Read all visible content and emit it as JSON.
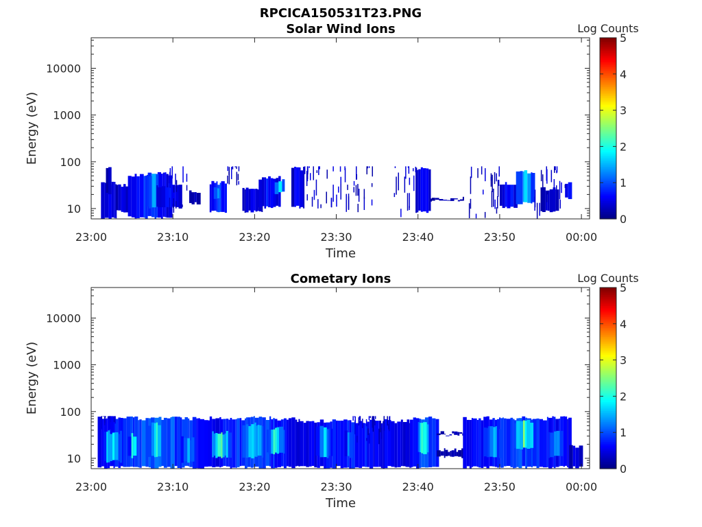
{
  "figure_title": "RPCICA150531T23.PNG",
  "colors": {
    "colormap": [
      "#00007f",
      "#0000ff",
      "#007fff",
      "#00ffff",
      "#7fff7f",
      "#ffff00",
      "#ff7f00",
      "#ff0000",
      "#7f0000"
    ],
    "axis": "#262626"
  },
  "chart_data": [
    {
      "type": "heatmap",
      "title": "Solar Wind Ions",
      "xlabel": "Time",
      "ylabel": "Energy (eV)",
      "x_range": [
        "23:00",
        "00:01"
      ],
      "x_tick_labels": [
        "23:00",
        "23:10",
        "23:20",
        "23:30",
        "23:40",
        "23:50",
        "00:00"
      ],
      "y_scale": "log",
      "y_range": [
        6,
        45000
      ],
      "y_tick_labels": [
        "10",
        "100",
        "1000",
        "10000"
      ],
      "colorbar": {
        "label": "Log Counts",
        "range": [
          0,
          5
        ],
        "tick_labels": [
          "0",
          "1",
          "2",
          "3",
          "4",
          "5"
        ]
      },
      "grid": false,
      "blobs": [
        {
          "t0": 1.2,
          "t1": 3.0,
          "e0": 6,
          "e1": 40,
          "v": 0.6
        },
        {
          "t0": 1.8,
          "t1": 2.2,
          "e0": 20,
          "e1": 80,
          "v": 0.4
        },
        {
          "t0": 3.0,
          "t1": 4.5,
          "e0": 8,
          "e1": 35,
          "v": 0.5
        },
        {
          "t0": 4.5,
          "t1": 9.5,
          "e0": 6,
          "e1": 60,
          "v": 0.8
        },
        {
          "t0": 6.8,
          "t1": 8.0,
          "e0": 10,
          "e1": 60,
          "v": 1.3
        },
        {
          "t0": 8.0,
          "t1": 10.8,
          "e0": 10,
          "e1": 35,
          "v": 0.6
        },
        {
          "t0": 12.0,
          "t1": 13.0,
          "e0": 12,
          "e1": 25,
          "v": 0.3
        },
        {
          "t0": 14.5,
          "t1": 16.5,
          "e0": 8,
          "e1": 40,
          "v": 0.9
        },
        {
          "t0": 15.0,
          "t1": 15.8,
          "e0": 15,
          "e1": 30,
          "v": 1.5
        },
        {
          "t0": 18.5,
          "t1": 21.0,
          "e0": 8,
          "e1": 30,
          "v": 0.5
        },
        {
          "t0": 20.5,
          "t1": 23.0,
          "e0": 10,
          "e1": 50,
          "v": 0.7
        },
        {
          "t0": 22.3,
          "t1": 23.4,
          "e0": 20,
          "e1": 45,
          "v": 1.4
        },
        {
          "t0": 24.5,
          "t1": 26.0,
          "e0": 10,
          "e1": 80,
          "v": 0.6
        },
        {
          "t0": 39.7,
          "t1": 41.5,
          "e0": 8,
          "e1": 80,
          "v": 0.6
        },
        {
          "t0": 41.5,
          "t1": 45.5,
          "e0": 14,
          "e1": 18,
          "v": 0.3
        },
        {
          "t0": 50.0,
          "t1": 52.0,
          "e0": 10,
          "e1": 40,
          "v": 0.7
        },
        {
          "t0": 52.0,
          "t1": 54.0,
          "e0": 12,
          "e1": 70,
          "v": 1.4
        },
        {
          "t0": 55.0,
          "t1": 57.0,
          "e0": 8,
          "e1": 30,
          "v": 0.4
        },
        {
          "t0": 58.0,
          "t1": 58.6,
          "e0": 15,
          "e1": 40,
          "v": 0.9
        }
      ],
      "sparse_segments": [
        {
          "t0": 9.5,
          "t1": 12.0,
          "e0": 8,
          "e1": 80
        },
        {
          "t0": 16.5,
          "t1": 18.5,
          "e0": 30,
          "e1": 80
        },
        {
          "t0": 26.0,
          "t1": 34.5,
          "e0": 8,
          "e1": 80
        },
        {
          "t0": 37.0,
          "t1": 39.7,
          "e0": 6,
          "e1": 80
        },
        {
          "t0": 46.0,
          "t1": 50.0,
          "e0": 6,
          "e1": 80
        },
        {
          "t0": 54.0,
          "t1": 58.0,
          "e0": 6,
          "e1": 80
        }
      ]
    },
    {
      "type": "heatmap",
      "title": "Cometary Ions",
      "xlabel": "Time",
      "ylabel": "Energy (eV)",
      "x_range": [
        "23:00",
        "00:01"
      ],
      "x_tick_labels": [
        "23:00",
        "23:10",
        "23:20",
        "23:30",
        "23:40",
        "23:50",
        "00:00"
      ],
      "y_scale": "log",
      "y_range": [
        6,
        45000
      ],
      "y_tick_labels": [
        "10",
        "100",
        "1000",
        "10000"
      ],
      "colorbar": {
        "label": "Log Counts",
        "range": [
          0,
          5
        ],
        "tick_labels": [
          "0",
          "1",
          "2",
          "3",
          "4",
          "5"
        ]
      },
      "grid": false,
      "blobs": [
        {
          "t0": 0.8,
          "t1": 14.5,
          "e0": 6,
          "e1": 80,
          "v": 1.0
        },
        {
          "t0": 1.5,
          "t1": 3.5,
          "e0": 8,
          "e1": 40,
          "v": 1.8
        },
        {
          "t0": 4.5,
          "t1": 5.5,
          "e0": 10,
          "e1": 35,
          "v": 1.6
        },
        {
          "t0": 7.0,
          "t1": 8.5,
          "e0": 10,
          "e1": 60,
          "v": 1.9
        },
        {
          "t0": 11.0,
          "t1": 12.3,
          "e0": 8,
          "e1": 30,
          "v": 1.5
        },
        {
          "t0": 14.5,
          "t1": 25.0,
          "e0": 6,
          "e1": 80,
          "v": 0.9
        },
        {
          "t0": 14.8,
          "t1": 16.8,
          "e0": 10,
          "e1": 40,
          "v": 2.0
        },
        {
          "t0": 18.5,
          "t1": 21.0,
          "e0": 10,
          "e1": 60,
          "v": 1.6
        },
        {
          "t0": 21.5,
          "t1": 23.5,
          "e0": 12,
          "e1": 50,
          "v": 1.8
        },
        {
          "t0": 25.0,
          "t1": 39.0,
          "e0": 6,
          "e1": 70,
          "v": 0.7
        },
        {
          "t0": 27.5,
          "t1": 29.5,
          "e0": 10,
          "e1": 50,
          "v": 1.3
        },
        {
          "t0": 31.0,
          "t1": 32.0,
          "e0": 10,
          "e1": 40,
          "v": 1.1
        },
        {
          "t0": 39.0,
          "t1": 42.3,
          "e0": 6,
          "e1": 80,
          "v": 1.0
        },
        {
          "t0": 40.0,
          "t1": 41.3,
          "e0": 12,
          "e1": 60,
          "v": 1.9
        },
        {
          "t0": 42.3,
          "t1": 45.5,
          "e0": 10,
          "e1": 17,
          "v": 0.25
        },
        {
          "t0": 42.3,
          "t1": 45.5,
          "e0": 30,
          "e1": 38,
          "v": 0.3
        },
        {
          "t0": 45.5,
          "t1": 58.5,
          "e0": 6,
          "e1": 80,
          "v": 0.9
        },
        {
          "t0": 48.0,
          "t1": 50.0,
          "e0": 10,
          "e1": 50,
          "v": 1.4
        },
        {
          "t0": 51.8,
          "t1": 54.0,
          "e0": 15,
          "e1": 70,
          "v": 2.1
        },
        {
          "t0": 56.0,
          "t1": 57.5,
          "e0": 10,
          "e1": 40,
          "v": 1.3
        },
        {
          "t0": 58.5,
          "t1": 59.8,
          "e0": 6,
          "e1": 20,
          "v": 0.5
        }
      ],
      "sparse_segments": [
        {
          "t0": 0.8,
          "t1": 3.0,
          "e0": 40,
          "e1": 80
        },
        {
          "t0": 32.0,
          "t1": 37.0,
          "e0": 20,
          "e1": 80
        }
      ]
    }
  ]
}
